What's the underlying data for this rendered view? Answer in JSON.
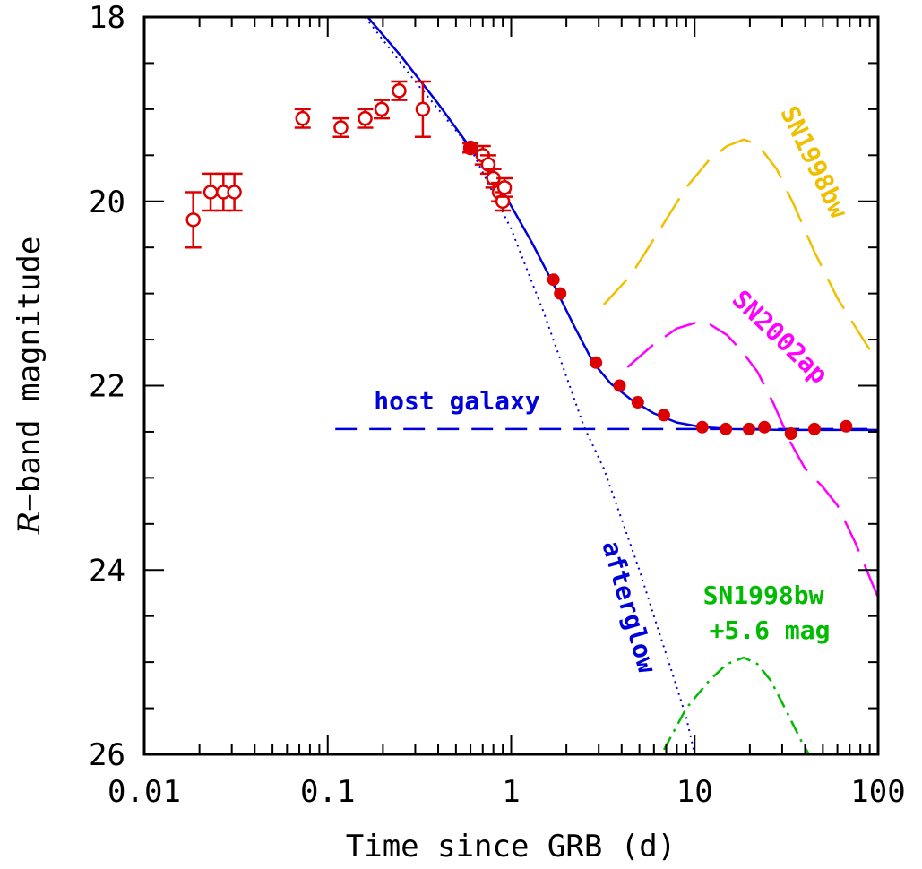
{
  "chart_data": {
    "type": "scatter",
    "title": "",
    "xlabel": "Time since GRB (d)",
    "ylabel_prefix": "R",
    "ylabel_rest": "−band magnitude",
    "x_scale": "log",
    "xlim": [
      0.01,
      100
    ],
    "ylim": [
      26,
      18
    ],
    "y_inverted": true,
    "grid": false,
    "x_ticks": [
      {
        "value": 0.01,
        "label": "0.01"
      },
      {
        "value": 0.1,
        "label": "0.1"
      },
      {
        "value": 1,
        "label": "1"
      },
      {
        "value": 10,
        "label": "10"
      },
      {
        "value": 100,
        "label": "100"
      }
    ],
    "y_ticks": [
      {
        "value": 18,
        "label": "18"
      },
      {
        "value": 20,
        "label": "20"
      },
      {
        "value": 22,
        "label": "22"
      },
      {
        "value": 24,
        "label": "24"
      },
      {
        "value": 26,
        "label": "26"
      }
    ],
    "colors": {
      "data": "#dd0000",
      "model": "#0000dd",
      "sn1998bw": "#f0c000",
      "sn2002ap": "#ff00ff",
      "sn1998bw_scaled": "#00bb00"
    },
    "annotations": {
      "host": "host galaxy",
      "afterglow": "afterglow",
      "sn1998bw": "SN1998bw",
      "sn2002ap": "SN2002ap",
      "sn1998bw_scaled_line1": "SN1998bw",
      "sn1998bw_scaled_line2": "+5.6 mag"
    },
    "series": [
      {
        "marker": "open-circle",
        "points": [
          {
            "x": 0.0185,
            "y": 20.2,
            "err": 0.3
          },
          {
            "x": 0.023,
            "y": 19.9,
            "err": 0.2
          },
          {
            "x": 0.027,
            "y": 19.9,
            "err": 0.2
          },
          {
            "x": 0.031,
            "y": 19.9,
            "err": 0.2
          },
          {
            "x": 0.073,
            "y": 19.1,
            "err": 0.1
          },
          {
            "x": 0.118,
            "y": 19.2,
            "err": 0.1
          },
          {
            "x": 0.16,
            "y": 19.1,
            "err": 0.1
          },
          {
            "x": 0.197,
            "y": 19.0,
            "err": 0.1
          },
          {
            "x": 0.245,
            "y": 18.8,
            "err": 0.1
          },
          {
            "x": 0.33,
            "y": 19.0,
            "err": 0.3
          },
          {
            "x": 0.6,
            "y": 19.42,
            "err": 0.05
          },
          {
            "x": 0.7,
            "y": 19.5,
            "err": 0.1
          },
          {
            "x": 0.75,
            "y": 19.6,
            "err": 0.1
          },
          {
            "x": 0.8,
            "y": 19.75,
            "err": 0.1
          },
          {
            "x": 0.86,
            "y": 19.9,
            "err": 0.1
          },
          {
            "x": 0.9,
            "y": 20.0,
            "err": 0.1
          },
          {
            "x": 0.92,
            "y": 19.85,
            "err": 0.1
          }
        ]
      },
      {
        "marker": "filled-circle",
        "points": [
          {
            "x": 0.6,
            "y": 19.42
          },
          {
            "x": 1.7,
            "y": 20.85
          },
          {
            "x": 1.85,
            "y": 21.0
          },
          {
            "x": 2.9,
            "y": 21.75
          },
          {
            "x": 3.9,
            "y": 22.0
          },
          {
            "x": 4.9,
            "y": 22.18
          },
          {
            "x": 6.8,
            "y": 22.32
          },
          {
            "x": 11.0,
            "y": 22.45
          },
          {
            "x": 14.8,
            "y": 22.47
          },
          {
            "x": 19.8,
            "y": 22.47
          },
          {
            "x": 24.0,
            "y": 22.45
          },
          {
            "x": 33.5,
            "y": 22.52
          },
          {
            "x": 45.0,
            "y": 22.47
          },
          {
            "x": 67.0,
            "y": 22.44
          }
        ]
      }
    ],
    "curves": {
      "host": {
        "style": "dashed",
        "x_range": [
          0.11,
          100
        ],
        "y": 22.47
      },
      "total": {
        "style": "solid",
        "points": [
          [
            0.165,
            18.0
          ],
          [
            0.25,
            18.42
          ],
          [
            0.4,
            18.94
          ],
          [
            0.6,
            19.42
          ],
          [
            0.8,
            19.72
          ],
          [
            1.0,
            20.05
          ],
          [
            1.3,
            20.45
          ],
          [
            1.7,
            20.9
          ],
          [
            2.2,
            21.35
          ],
          [
            2.8,
            21.75
          ],
          [
            3.5,
            21.98
          ],
          [
            4.5,
            22.15
          ],
          [
            6.0,
            22.3
          ],
          [
            8.0,
            22.4
          ],
          [
            11.0,
            22.45
          ],
          [
            16.0,
            22.47
          ],
          [
            30.0,
            22.48
          ],
          [
            100.0,
            22.48
          ]
        ]
      },
      "afterglow": {
        "style": "dotted",
        "points": [
          [
            0.16,
            18.0
          ],
          [
            0.3,
            18.7
          ],
          [
            0.6,
            19.42
          ],
          [
            1.0,
            20.3
          ],
          [
            1.5,
            21.2
          ],
          [
            2.0,
            21.9
          ],
          [
            2.5,
            22.45
          ],
          [
            3.2,
            22.9
          ],
          [
            4.0,
            23.45
          ],
          [
            5.0,
            24.0
          ],
          [
            6.0,
            24.5
          ],
          [
            7.5,
            25.1
          ],
          [
            9.0,
            25.6
          ],
          [
            10.0,
            26.0
          ]
        ]
      },
      "sn1998bw": {
        "style": "long-dash",
        "points": [
          [
            3.2,
            21.12
          ],
          [
            4.5,
            20.8
          ],
          [
            6.5,
            20.3
          ],
          [
            9.0,
            19.85
          ],
          [
            12.0,
            19.55
          ],
          [
            15.0,
            19.4
          ],
          [
            18.5,
            19.33
          ],
          [
            22.0,
            19.38
          ],
          [
            28.0,
            19.65
          ],
          [
            35.0,
            20.05
          ],
          [
            45.0,
            20.55
          ],
          [
            60.0,
            21.05
          ],
          [
            80.0,
            21.45
          ],
          [
            100.0,
            21.75
          ]
        ]
      },
      "sn2002ap": {
        "style": "long-dash",
        "points": [
          [
            4.3,
            21.8
          ],
          [
            6.0,
            21.55
          ],
          [
            8.0,
            21.38
          ],
          [
            10.0,
            21.32
          ],
          [
            12.0,
            21.33
          ],
          [
            15.0,
            21.45
          ],
          [
            18.0,
            21.62
          ],
          [
            22.0,
            21.85
          ],
          [
            27.0,
            22.2
          ],
          [
            33.0,
            22.6
          ],
          [
            40.0,
            22.9
          ],
          [
            50.0,
            23.1
          ],
          [
            60.0,
            23.3
          ],
          [
            75.0,
            23.7
          ],
          [
            100.0,
            24.3
          ]
        ]
      },
      "sn1998bw_scaled": {
        "style": "dash-dot",
        "points": [
          [
            6.8,
            25.95
          ],
          [
            9.0,
            25.5
          ],
          [
            12.0,
            25.2
          ],
          [
            15.0,
            25.02
          ],
          [
            18.5,
            24.95
          ],
          [
            22.0,
            25.02
          ],
          [
            26.0,
            25.2
          ],
          [
            32.0,
            25.55
          ],
          [
            38.0,
            25.85
          ],
          [
            42.0,
            26.0
          ]
        ]
      }
    }
  }
}
